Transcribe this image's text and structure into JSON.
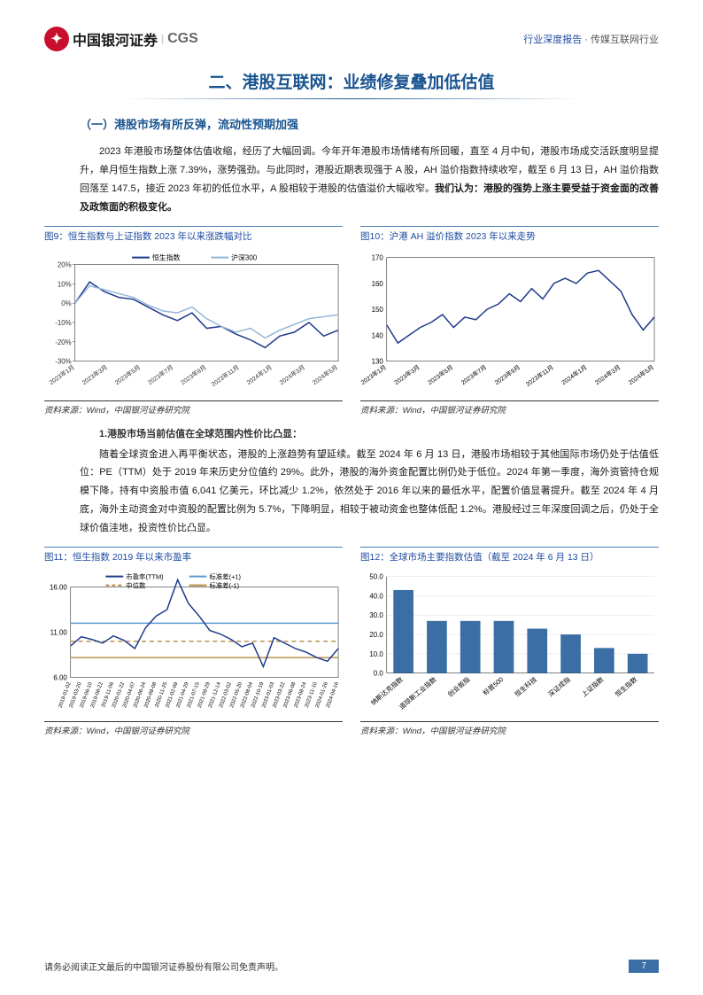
{
  "header": {
    "brand_cn": "中国银河证券",
    "brand_en": "CGS",
    "doc_type": "行业深度报告",
    "category": "传媒互联网行业"
  },
  "main_title": "二、港股互联网：业绩修复叠加低估值",
  "subtitle_1": "（一）港股市场有所反弹，流动性预期加强",
  "paragraph_1": "2023 年港股市场整体估值收缩，经历了大幅回调。今年开年港股市场情绪有所回暖，直至 4 月中旬，港股市场成交活跃度明显提升，单月恒生指数上涨 7.39%，涨势强劲。与此同时，港股近期表现强于 A 股，AH 溢价指数持续收窄，截至 6 月 13 日，AH 溢价指数回落至 147.5，接近 2023 年初的低位水平，A 股相较于港股的估值溢价大幅收窄。",
  "paragraph_1_bold": "我们认为：港股的强势上涨主要受益于资金面的改善及政策面的积极变化。",
  "chart9": {
    "title": "图9：恒生指数与上证指数 2023 年以来涨跌幅对比",
    "legend": [
      "恒生指数",
      "沪深300"
    ],
    "colors": [
      "#1e3a8a",
      "#93b5d8"
    ],
    "x_labels": [
      "2023年1月",
      "2023年3月",
      "2023年5月",
      "2023年7月",
      "2023年9月",
      "2023年11月",
      "2024年1月",
      "2024年3月",
      "2024年5月"
    ],
    "y_min": -30,
    "y_max": 20,
    "y_step": 10,
    "series_navy": [
      0,
      11,
      6,
      3,
      2,
      -2,
      -6,
      -9,
      -5,
      -13,
      -12,
      -16,
      -19,
      -23,
      -17,
      -15,
      -10,
      -17,
      -14
    ],
    "series_light": [
      0,
      9,
      7,
      5,
      3,
      -1,
      -4,
      -5,
      -2,
      -8,
      -12,
      -15,
      -13,
      -18,
      -14,
      -11,
      -8,
      -7,
      -6
    ],
    "source": "资料来源：Wind，中国银河证券研究院"
  },
  "chart10": {
    "title": "图10：沪港 AH 溢价指数 2023 年以来走势",
    "color": "#1e3a8a",
    "x_labels": [
      "2023年1月",
      "2023年3月",
      "2023年5月",
      "2023年7月",
      "2023年9月",
      "2023年11月",
      "2024年1月",
      "2024年3月",
      "2024年5月"
    ],
    "y_min": 130,
    "y_max": 170,
    "y_step": 10,
    "series": [
      144,
      137,
      140,
      143,
      145,
      148,
      143,
      147,
      146,
      150,
      152,
      156,
      153,
      158,
      154,
      160,
      162,
      160,
      164,
      165,
      161,
      157,
      148,
      142,
      147
    ],
    "source": "资料来源：Wind，中国银河证券研究院"
  },
  "section_heading_1": "1.港股市场当前估值在全球范围内性价比凸显：",
  "paragraph_2": "随着全球资金进入再平衡状态，港股的上涨趋势有望延续。截至 2024 年 6 月 13 日，港股市场相较于其他国际市场仍处于估值低位：PE（TTM）处于 2019 年来历史分位值约 29%。此外，港股的海外资金配置比例仍处于低位。2024 年第一季度，海外资管持仓规模下降，持有中资股市值 6,041 亿美元，环比减少 1.2%，依然处于 2016 年以来的最低水平，配置价值显著提升。截至 2024 年 4 月底，海外主动资金对中资股的配置比例为 5.7%，下降明显，相较于被动资金也整体低配 1.2%。港股经过三年深度回调之后，仍处于全球价值洼地，投资性价比凸显。",
  "chart11": {
    "title": "图11：恒生指数 2019 年以来市盈率",
    "legend": [
      "市盈率(TTM)",
      "标准差(+1)",
      "中位数",
      "标准差(-1)"
    ],
    "colors": {
      "pe": "#1e3a8a",
      "sd_plus": "#5a9bd5",
      "median": "#b58a3e",
      "sd_minus": "#b58a3e"
    },
    "x_labels": [
      "2019-01-02",
      "2019-03-20",
      "2019-06-10",
      "2019-08-22",
      "2019-11-06",
      "2020-01-22",
      "2020-04-07",
      "2020-06-24",
      "2020-09-08",
      "2020-11-25",
      "2021-02-09",
      "2021-04-29",
      "2021-07-15",
      "2021-09-29",
      "2021-12-14",
      "2022-03-02",
      "2022-05-20",
      "2022-08-04",
      "2022-10-19",
      "2023-01-03",
      "2023-03-22",
      "2023-06-08",
      "2023-08-24",
      "2023-11-10",
      "2024-01-26",
      "2024-04-16"
    ],
    "y_min": 6,
    "y_max": 16,
    "y_step": 5,
    "series_pe": [
      9.5,
      10.5,
      10.2,
      9.8,
      10.6,
      10.1,
      9.2,
      11.5,
      12.8,
      13.5,
      16.8,
      14.2,
      12.8,
      11.2,
      10.8,
      10.2,
      9.4,
      9.8,
      7.2,
      10.4,
      9.8,
      9.2,
      8.8,
      8.2,
      7.8,
      9.2
    ],
    "sd_plus": 12.0,
    "median": 10.0,
    "sd_minus": 8.2,
    "source": "资料来源：Wind，中国银河证券研究院"
  },
  "chart12": {
    "title": "图12：全球市场主要指数估值（截至 2024 年 6 月 13 日）",
    "color": "#3a6ea5",
    "categories": [
      "纳斯达克指数",
      "道琼斯工业指数",
      "创业板指",
      "标普500",
      "恒生科技",
      "深证成指",
      "上证指数",
      "恒生指数"
    ],
    "values": [
      43,
      27,
      27,
      27,
      23,
      20,
      13,
      10
    ],
    "y_min": 0,
    "y_max": 50,
    "y_step": 10,
    "source": "资料来源：Wind，中国银河证券研究院"
  },
  "footer": {
    "disclaimer": "请务必阅读正文最后的中国银河证券股份有限公司免责声明。",
    "page_num": "7"
  }
}
